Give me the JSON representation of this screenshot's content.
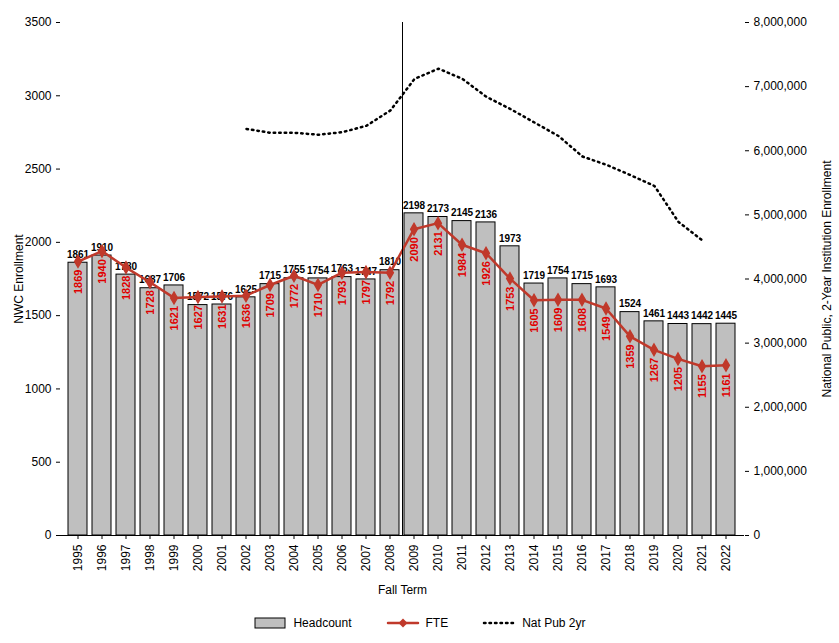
{
  "chart_data": {
    "type": "bar",
    "x_label": "Fall Term",
    "y_label": "NWC Enrollment",
    "y2_label": "National Public, 2-Year Institution Enrollment",
    "categories": [
      "1995",
      "1996",
      "1997",
      "1998",
      "1999",
      "2000",
      "2001",
      "2002",
      "2003",
      "2004",
      "2005",
      "2006",
      "2007",
      "2008",
      "2009",
      "2010",
      "2011",
      "2012",
      "2013",
      "2014",
      "2015",
      "2016",
      "2017",
      "2018",
      "2019",
      "2020",
      "2021",
      "2022"
    ],
    "series": [
      {
        "name": "Headcount",
        "type": "bar",
        "color": "#bfbfbf",
        "values": [
          1861,
          1910,
          1780,
          1687,
          1706,
          1572,
          1576,
          1625,
          1715,
          1755,
          1754,
          1763,
          1747,
          1810,
          2198,
          2173,
          2145,
          2136,
          1973,
          1719,
          1754,
          1715,
          1693,
          1524,
          1461,
          1443,
          1442,
          1445
        ]
      },
      {
        "name": "FTE",
        "type": "line",
        "color": "#c0392b",
        "marker": "diamond",
        "values": [
          1869,
          1940,
          1828,
          1728,
          1621,
          1627,
          1631,
          1636,
          1709,
          1772,
          1710,
          1793,
          1797,
          1792,
          2090,
          2131,
          1984,
          1926,
          1753,
          1605,
          1609,
          1608,
          1549,
          1359,
          1267,
          1205,
          1155,
          1161
        ]
      },
      {
        "name": "Nat Pub 2yr",
        "type": "line",
        "axis": "y2",
        "color": "#000000",
        "line_style": "dotted",
        "values": [
          null,
          null,
          null,
          null,
          null,
          null,
          null,
          6340000,
          6280000,
          6280000,
          6250000,
          6290000,
          6390000,
          6630000,
          7120000,
          7280000,
          7120000,
          6840000,
          6650000,
          6440000,
          6230000,
          5910000,
          5780000,
          5620000,
          5450000,
          4890000,
          4600000,
          null
        ]
      }
    ],
    "ylim": [
      0,
      3500
    ],
    "yticks": [
      0,
      500,
      1000,
      1500,
      2000,
      2500,
      3000,
      3500
    ],
    "y2lim": [
      0,
      8000000
    ],
    "y2ticks": [
      0,
      {
        "value": 1000000,
        "label": "1,000,000"
      },
      {
        "value": 2000000,
        "label": "2,000,000"
      },
      {
        "value": 3000000,
        "label": "3,000,000"
      },
      {
        "value": 4000000,
        "label": "4,000,000"
      },
      {
        "value": 5000000,
        "label": "5,000,000"
      },
      {
        "value": 6000000,
        "label": "6,000,000"
      },
      {
        "value": 7000000,
        "label": "7,000,000"
      },
      {
        "value": 8000000,
        "label": "8,000,000"
      }
    ],
    "grid": false,
    "data_labels": true,
    "legend": "bottom"
  }
}
